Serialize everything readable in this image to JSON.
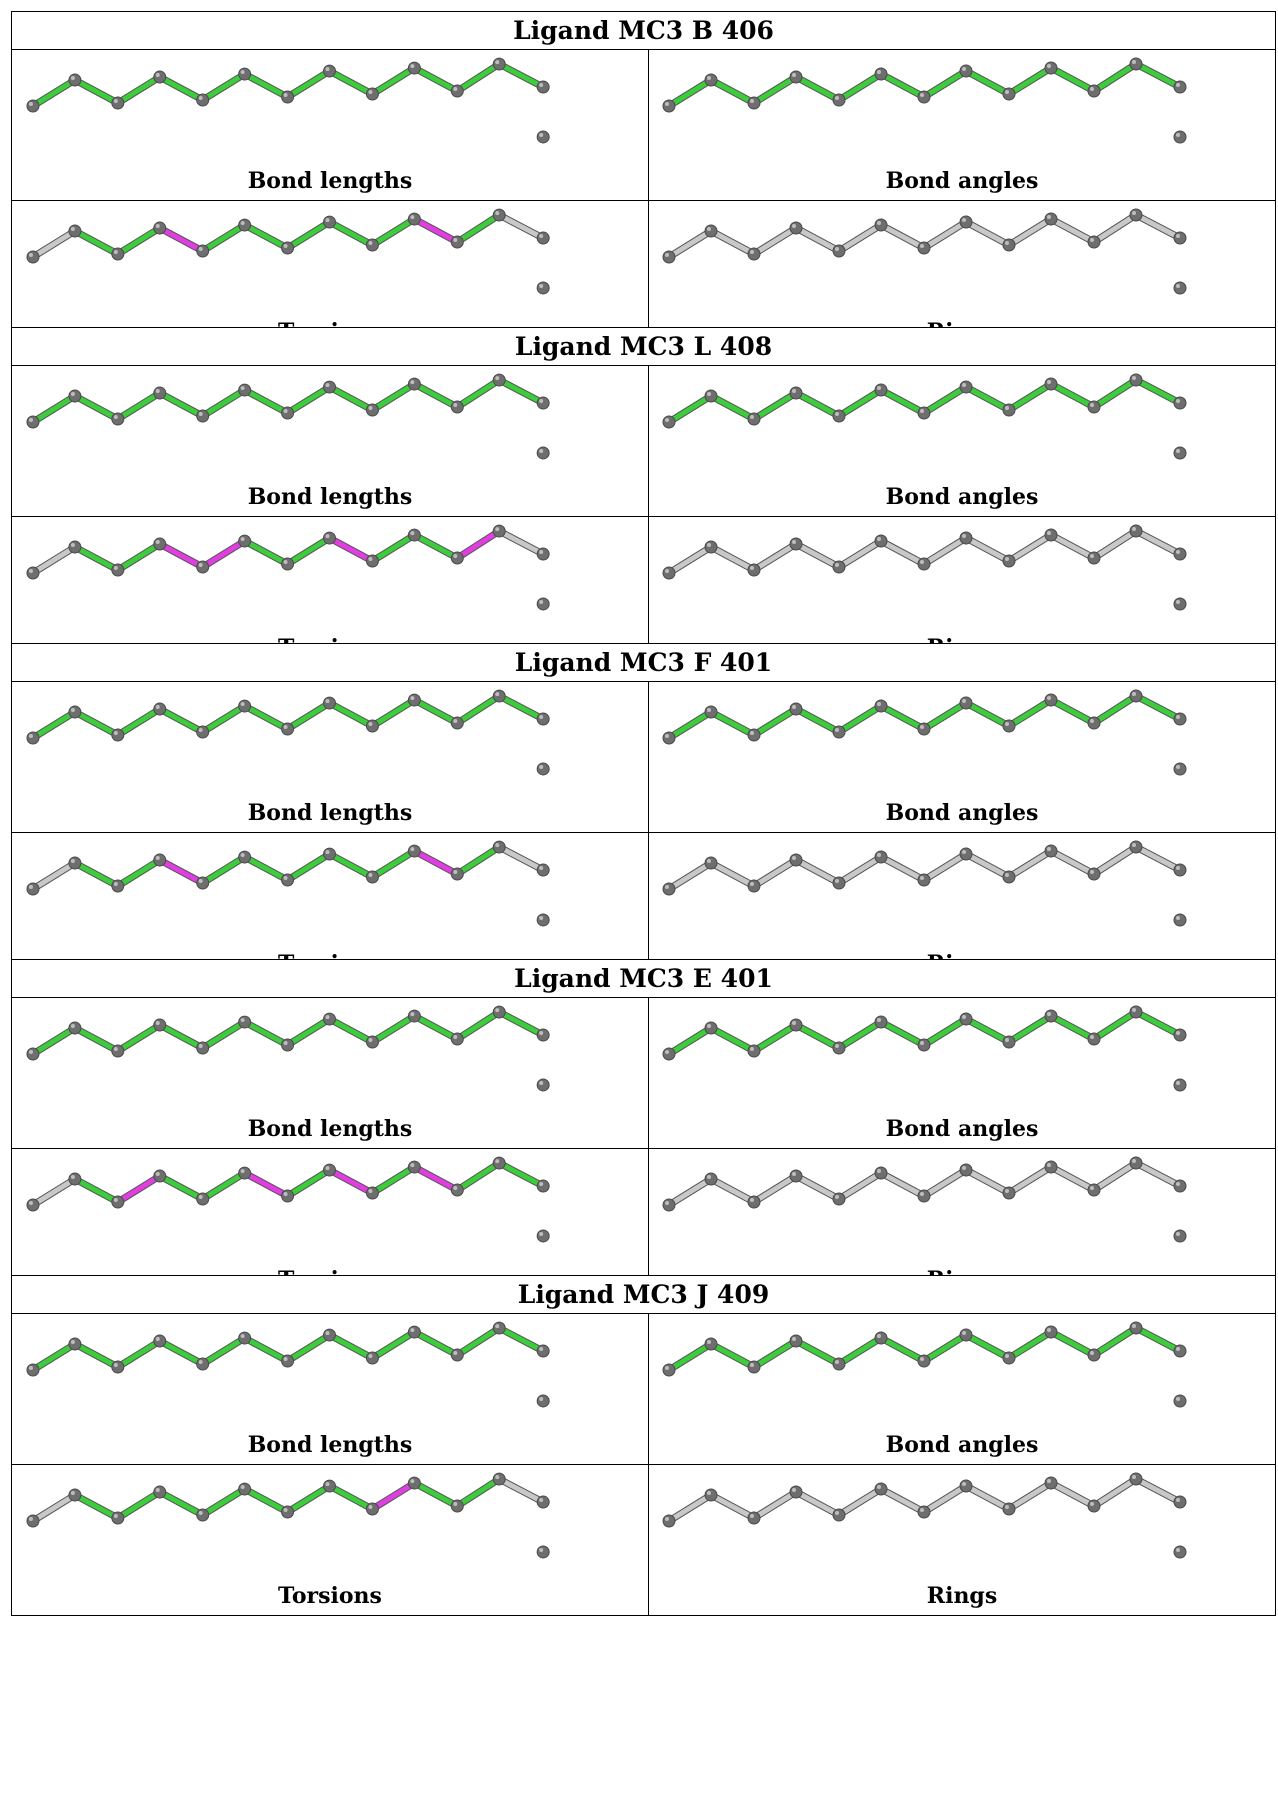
{
  "colors": {
    "good": "#3ccc3c",
    "bad": "#e13ee1",
    "neutral": "#c8c8c8",
    "atom": "#6e6e6e"
  },
  "bond_count": 12,
  "panel_labels": {
    "bond_lengths": "Bond lengths",
    "bond_angles": "Bond angles",
    "torsions": "Torsions",
    "rings": "Rings"
  },
  "ligands": [
    {
      "title": "Ligand MC3 B 406",
      "torsion_flags": [
        0,
        1,
        1,
        0,
        1,
        1,
        1,
        1,
        1,
        0,
        1,
        0
      ]
    },
    {
      "title": "Ligand MC3 L 408",
      "torsion_flags": [
        0,
        1,
        1,
        0,
        0,
        1,
        1,
        0,
        1,
        1,
        0,
        0
      ]
    },
    {
      "title": "Ligand MC3 F 401",
      "torsion_flags": [
        0,
        1,
        1,
        0,
        1,
        1,
        1,
        1,
        1,
        0,
        1,
        0
      ]
    },
    {
      "title": "Ligand MC3 E 401",
      "torsion_flags": [
        0,
        1,
        0,
        1,
        1,
        0,
        1,
        0,
        1,
        0,
        1,
        1
      ]
    },
    {
      "title": "Ligand MC3 J 409",
      "torsion_flags": [
        0,
        1,
        1,
        1,
        1,
        1,
        1,
        1,
        0,
        1,
        1,
        0
      ]
    }
  ]
}
